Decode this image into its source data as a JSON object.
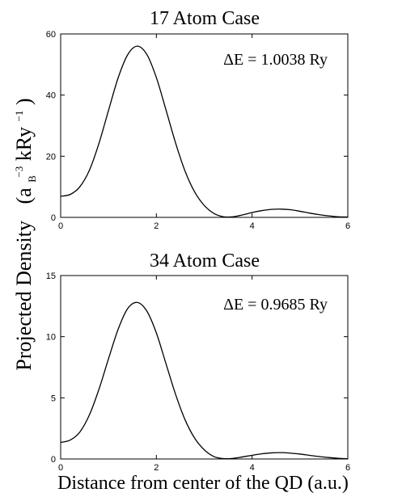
{
  "figure": {
    "ylabel_main": "Projected Density",
    "ylabel_units_prefix": "(a",
    "ylabel_units_sub": "B",
    "ylabel_units_sup": "−3",
    "ylabel_units_mid": " kRy",
    "ylabel_units_sup2": "−1",
    "ylabel_units_suffix": ")",
    "xlabel": "Distance from center of the QD (a.u.)",
    "line_color": "#000000"
  },
  "chart_data": [
    {
      "type": "line",
      "title": "17 Atom Case",
      "annotation": "ΔE = 1.0038 Ry",
      "xlim": [
        0,
        6
      ],
      "ylim": [
        0,
        60
      ],
      "xticks": [
        "0",
        "2",
        "4",
        "6"
      ],
      "yticks": [
        "0",
        "20",
        "40",
        "60"
      ],
      "grid": false,
      "series": [
        {
          "x": [
            0,
            0.2,
            0.4,
            0.6,
            0.8,
            1.0,
            1.2,
            1.4,
            1.6,
            1.8,
            2.0,
            2.2,
            2.4,
            2.6,
            2.8,
            3.0,
            3.2,
            3.4,
            3.6,
            3.8,
            4.0,
            4.2,
            4.4,
            4.6,
            4.8,
            5.0,
            5.2,
            5.4,
            5.6,
            5.8,
            6.0
          ],
          "y": [
            6.9,
            7.5,
            10.0,
            15.4,
            24.2,
            35.0,
            45.6,
            53.2,
            56.0,
            53.3,
            45.7,
            35.2,
            24.4,
            15.1,
            8.3,
            3.9,
            1.3,
            0.2,
            0.2,
            0.8,
            1.6,
            2.2,
            2.6,
            2.7,
            2.5,
            2.0,
            1.4,
            0.9,
            0.5,
            0.2,
            0.1
          ]
        }
      ]
    },
    {
      "type": "line",
      "title": "34 Atom Case",
      "annotation": "ΔE = 0.9685 Ry",
      "xlim": [
        0,
        6
      ],
      "ylim": [
        0,
        15
      ],
      "xticks": [
        "0",
        "2",
        "4",
        "6"
      ],
      "yticks": [
        "0",
        "5",
        "10",
        "15"
      ],
      "grid": false,
      "series": [
        {
          "x": [
            0,
            0.2,
            0.4,
            0.6,
            0.8,
            1.0,
            1.2,
            1.4,
            1.6,
            1.8,
            2.0,
            2.2,
            2.4,
            2.6,
            2.8,
            3.0,
            3.2,
            3.4,
            3.6,
            3.8,
            4.0,
            4.2,
            4.4,
            4.6,
            4.8,
            5.0,
            5.2,
            5.4,
            5.6,
            5.8,
            6.0
          ],
          "y": [
            1.35,
            1.55,
            2.2,
            3.6,
            5.7,
            8.2,
            10.6,
            12.3,
            12.8,
            12.1,
            10.3,
            7.8,
            5.3,
            3.2,
            1.7,
            0.75,
            0.2,
            0.03,
            0.05,
            0.17,
            0.3,
            0.42,
            0.5,
            0.52,
            0.48,
            0.4,
            0.3,
            0.2,
            0.12,
            0.06,
            0.02
          ]
        }
      ]
    }
  ]
}
